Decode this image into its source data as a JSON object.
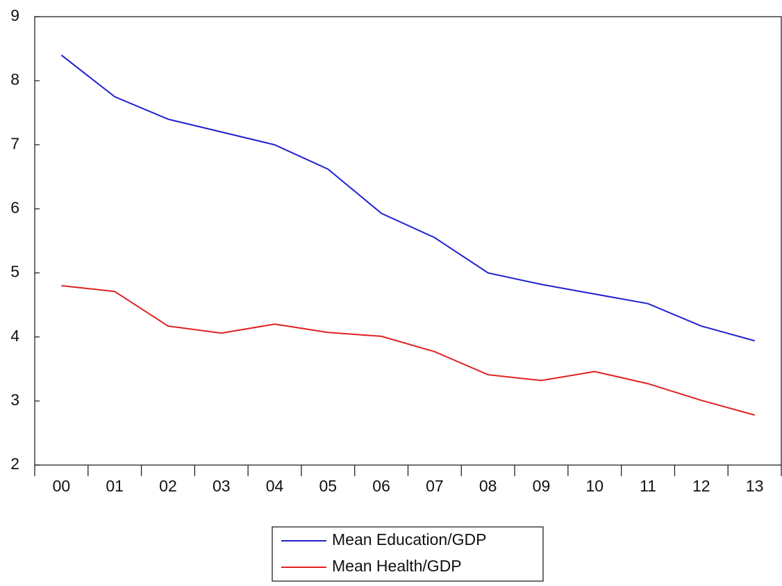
{
  "chart_data": {
    "type": "line",
    "categories": [
      "00",
      "01",
      "02",
      "03",
      "04",
      "05",
      "06",
      "07",
      "08",
      "09",
      "10",
      "11",
      "12",
      "13"
    ],
    "series": [
      {
        "name": "Mean Education/GDP",
        "color": "#1f1fd0",
        "values": [
          8.4,
          7.75,
          7.4,
          7.2,
          7.0,
          6.62,
          5.93,
          5.55,
          5.0,
          4.82,
          4.67,
          4.52,
          4.17,
          3.94
        ]
      },
      {
        "name": "Mean Health/GDP",
        "color": "#e01f1f",
        "values": [
          4.8,
          4.71,
          4.17,
          4.06,
          4.2,
          4.07,
          4.01,
          3.77,
          3.41,
          3.32,
          3.46,
          3.27,
          3.01,
          2.78
        ]
      }
    ],
    "ylim": [
      2,
      9
    ],
    "yticks": [
      2,
      3,
      4,
      5,
      6,
      7,
      8,
      9
    ],
    "grid": false
  }
}
